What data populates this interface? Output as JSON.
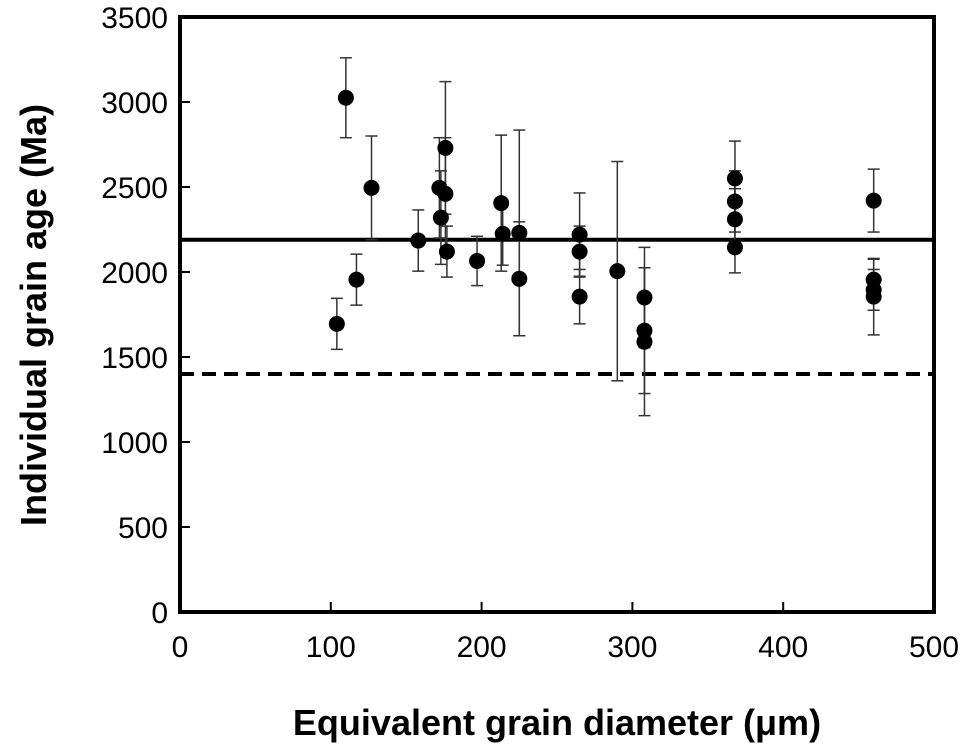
{
  "chart_data": {
    "type": "scatter",
    "title": "",
    "xlabel": "Equivalent grain diameter (μm)",
    "ylabel": "Individual grain age (Ma)",
    "xlim": [
      0,
      500
    ],
    "ylim": [
      0,
      3500
    ],
    "xticks": [
      0,
      100,
      200,
      300,
      400,
      500
    ],
    "yticks": [
      0,
      500,
      1000,
      1500,
      2000,
      2500,
      3000,
      3500
    ],
    "grid": false,
    "legend": "none",
    "marker_color": "#000000",
    "series": [
      {
        "points": [
          {
            "x": 104,
            "y": 1695,
            "err": 150
          },
          {
            "x": 110,
            "y": 3025,
            "err": 235
          },
          {
            "x": 117,
            "y": 1955,
            "err": 150
          },
          {
            "x": 127,
            "y": 2495,
            "err": 305
          },
          {
            "x": 158,
            "y": 2185,
            "err": 180
          },
          {
            "x": 172,
            "y": 2495,
            "err": 295
          },
          {
            "x": 173,
            "y": 2320,
            "err": 275
          },
          {
            "x": 176,
            "y": 2730,
            "err": 390
          },
          {
            "x": 176,
            "y": 2460,
            "err": 330
          },
          {
            "x": 177,
            "y": 2120,
            "err": 150
          },
          {
            "x": 197,
            "y": 2065,
            "err": 145
          },
          {
            "x": 213,
            "y": 2405,
            "err": 400
          },
          {
            "x": 214,
            "y": 2225,
            "err": 185
          },
          {
            "x": 225,
            "y": 2230,
            "err": 605
          },
          {
            "x": 225,
            "y": 1960,
            "err": 335
          },
          {
            "x": 265,
            "y": 2220,
            "err": 245
          },
          {
            "x": 265,
            "y": 2120,
            "err": 150
          },
          {
            "x": 265,
            "y": 1855,
            "err": 160
          },
          {
            "x": 290,
            "y": 2005,
            "err": 645
          },
          {
            "x": 308,
            "y": 1850,
            "err": 295
          },
          {
            "x": 308,
            "y": 1655,
            "err": 370
          },
          {
            "x": 308,
            "y": 1590,
            "err": 435
          },
          {
            "x": 368,
            "y": 2550,
            "err": 220
          },
          {
            "x": 368,
            "y": 2415,
            "err": 180
          },
          {
            "x": 368,
            "y": 2310,
            "err": 180
          },
          {
            "x": 368,
            "y": 2145,
            "err": 150
          },
          {
            "x": 460,
            "y": 2420,
            "err": 185
          },
          {
            "x": 460,
            "y": 1955,
            "err": 120
          },
          {
            "x": 460,
            "y": 1895,
            "err": 120
          },
          {
            "x": 460,
            "y": 1855,
            "err": 225
          }
        ]
      }
    ],
    "reference_lines": [
      {
        "style": "solid",
        "y": 2190
      },
      {
        "style": "dashed",
        "y": 1400
      }
    ]
  }
}
